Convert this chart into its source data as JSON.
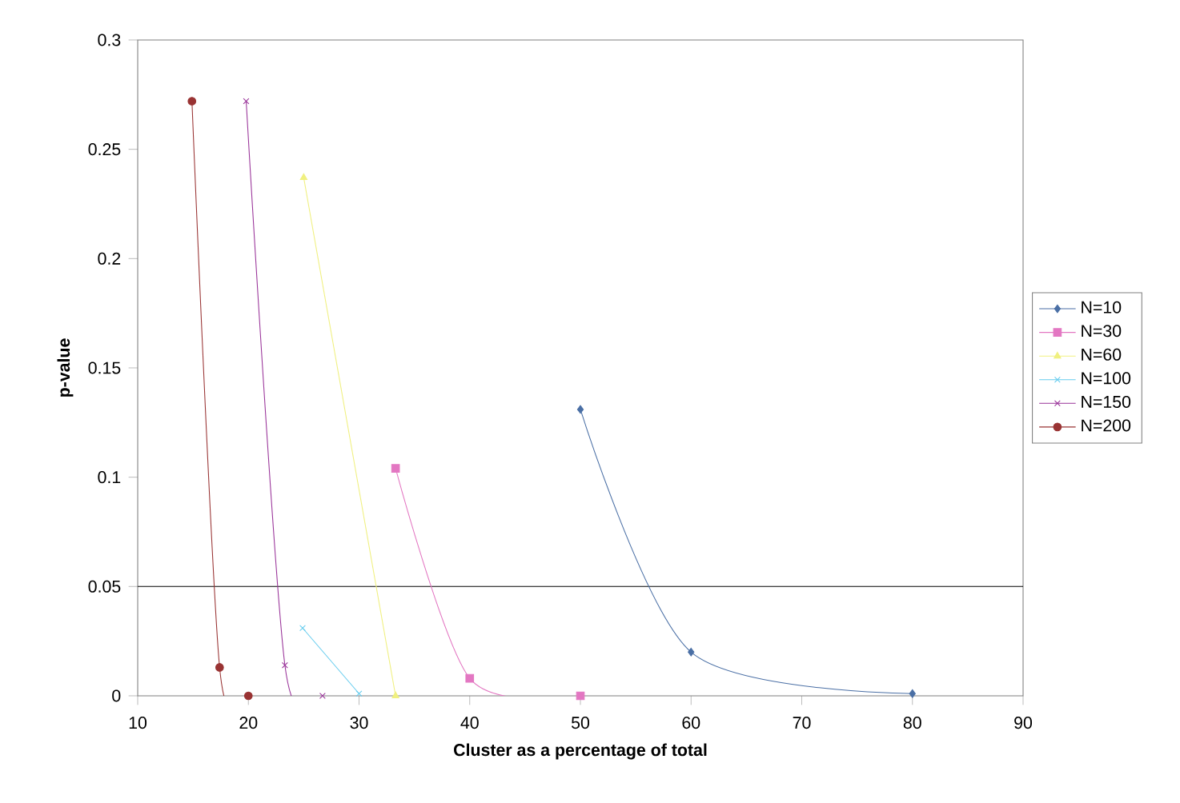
{
  "chart_data": {
    "type": "line",
    "xlabel": "Cluster as a percentage of total",
    "ylabel": "p-value",
    "xlim": [
      10,
      90
    ],
    "ylim": [
      0,
      0.3
    ],
    "xticks": [
      10,
      20,
      30,
      40,
      50,
      60,
      70,
      80,
      90
    ],
    "yticks": [
      0,
      0.05,
      0.1,
      0.15,
      0.2,
      0.25,
      0.3
    ],
    "grid": false,
    "legend": "right",
    "line_style": "solid",
    "ref_lines": [
      {
        "axis": "y",
        "value": 0.05,
        "color": "#000000"
      }
    ],
    "series": [
      {
        "name": "N=10",
        "color": "#4a6fa5",
        "marker": "diamond",
        "x": [
          50,
          60,
          80
        ],
        "values": [
          0.131,
          0.02,
          0.001
        ]
      },
      {
        "name": "N=30",
        "color": "#e377c2",
        "marker": "square",
        "x": [
          33.3,
          40,
          50
        ],
        "values": [
          0.104,
          0.008,
          0
        ]
      },
      {
        "name": "N=60",
        "color": "#f0f080",
        "marker": "triangle",
        "x": [
          25,
          33.3
        ],
        "values": [
          0.237,
          0
        ]
      },
      {
        "name": "N=100",
        "color": "#66ccee",
        "marker": "cross",
        "x": [
          24.9,
          30
        ],
        "values": [
          0.031,
          0.001
        ]
      },
      {
        "name": "N=150",
        "color": "#993399",
        "marker": "cross",
        "x": [
          19.8,
          23.3,
          26.7
        ],
        "values": [
          0.272,
          0.014,
          0
        ]
      },
      {
        "name": "N=200",
        "color": "#993333",
        "marker": "circle",
        "x": [
          14.9,
          17.4,
          20
        ],
        "values": [
          0.272,
          0.013,
          0
        ]
      }
    ]
  }
}
